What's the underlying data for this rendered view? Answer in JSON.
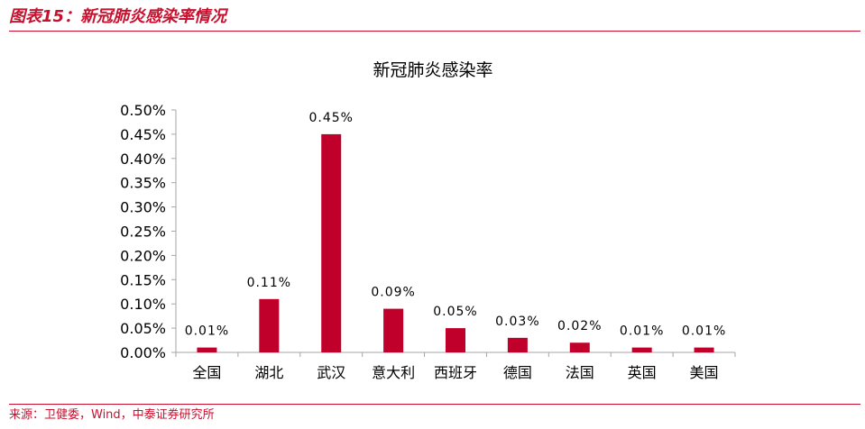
{
  "figure": {
    "title": "图表15：新冠肺炎感染率情况",
    "source": "来源：卫健委，Wind，中泰证券研究所"
  },
  "colors": {
    "accent": "#c8102e",
    "bar": "#c0002a",
    "axis": "#a6a6a6",
    "text": "#000000"
  },
  "chart_data": {
    "type": "bar",
    "title": "新冠肺炎感染率",
    "categories": [
      "全国",
      "湖北",
      "武汉",
      "意大利",
      "西班牙",
      "德国",
      "法国",
      "英国",
      "美国"
    ],
    "values": [
      0.0001,
      0.0011,
      0.0045,
      0.0009,
      0.0005,
      0.0003,
      0.0002,
      0.0001,
      0.0001
    ],
    "data_labels": [
      "0.01%",
      "0.11%",
      "0.45%",
      "0.09%",
      "0.05%",
      "0.03%",
      "0.02%",
      "0.01%",
      "0.01%"
    ],
    "y_ticks": [
      "0.00%",
      "0.05%",
      "0.10%",
      "0.15%",
      "0.20%",
      "0.25%",
      "0.30%",
      "0.35%",
      "0.40%",
      "0.45%",
      "0.50%"
    ],
    "ylim": [
      0,
      0.005
    ],
    "xlabel": "",
    "ylabel": "",
    "grid": false,
    "legend": "none"
  }
}
